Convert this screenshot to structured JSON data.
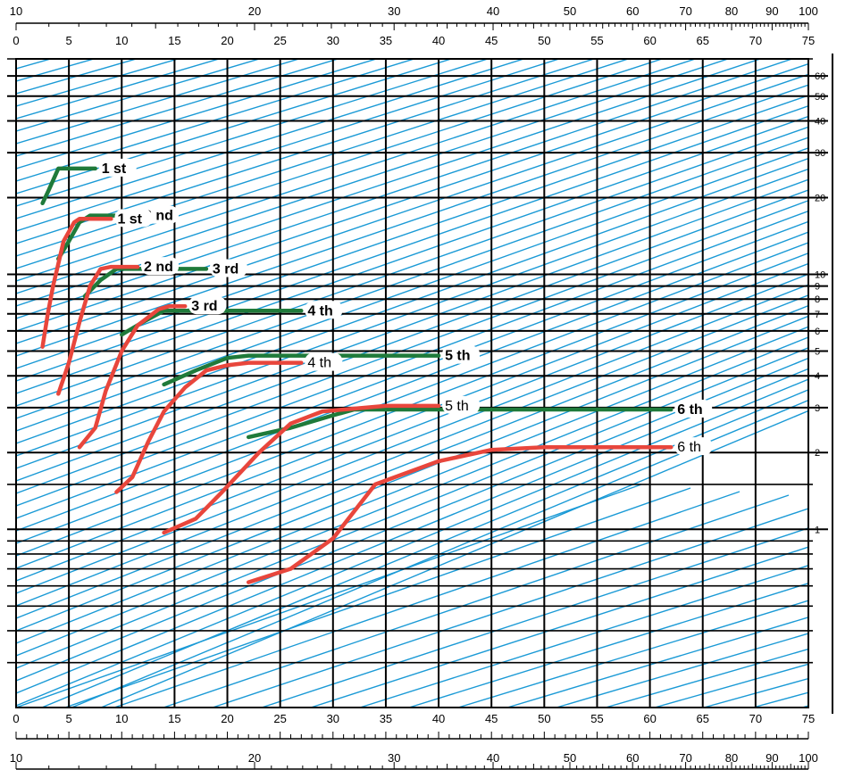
{
  "chart_data": {
    "type": "line",
    "title": "",
    "xlabel": "",
    "ylabel": "",
    "x_axis": {
      "range": [
        0,
        75
      ],
      "ticks": [
        0,
        5,
        10,
        15,
        20,
        25,
        30,
        35,
        40,
        45,
        50,
        55,
        60,
        65,
        70,
        75
      ],
      "top_log_ticks": [
        "10",
        "20",
        "30",
        "40",
        "50",
        "60",
        "70",
        "80",
        "90",
        "100"
      ]
    },
    "y_axis": {
      "scale": "log",
      "range": [
        0.2,
        70
      ],
      "tick_labels": [
        "60",
        "50",
        "40",
        "30",
        "20",
        "10",
        "9",
        "8",
        "7",
        "6",
        "5",
        "4",
        "3",
        "2",
        "1"
      ],
      "tick_values": [
        60,
        50,
        40,
        30,
        20,
        10,
        9,
        8,
        7,
        6,
        5,
        4,
        3,
        2,
        1
      ]
    },
    "grid": true,
    "colors": {
      "green_curves": "#1f7a3a",
      "red_curves": "#e8463c",
      "diagonal_lines": "#1a9ad6",
      "grid_lines": "#000000"
    },
    "series": [
      {
        "name": "1 st",
        "group": "green",
        "label_style": "bold",
        "points": [
          [
            2.5,
            19
          ],
          [
            3,
            21
          ],
          [
            4,
            26
          ],
          [
            7.5,
            26
          ]
        ]
      },
      {
        "name": "2 nd",
        "group": "green",
        "label_style": "bold",
        "points": [
          [
            4,
            11.5
          ],
          [
            5,
            13.5
          ],
          [
            6,
            16
          ],
          [
            7,
            17
          ],
          [
            11.5,
            17
          ]
        ]
      },
      {
        "name": "3 rd",
        "group": "green",
        "label_style": "bold",
        "points": [
          [
            6.5,
            8.2
          ],
          [
            8,
            9.5
          ],
          [
            9.5,
            10.5
          ],
          [
            18,
            10.5
          ]
        ]
      },
      {
        "name": "4 th",
        "group": "green",
        "label_style": "bold",
        "points": [
          [
            10,
            5.8
          ],
          [
            12,
            6.5
          ],
          [
            14,
            7.2
          ],
          [
            27,
            7.2
          ]
        ]
      },
      {
        "name": "5 th",
        "group": "green",
        "label_style": "bold",
        "points": [
          [
            14,
            3.7
          ],
          [
            17,
            4.2
          ],
          [
            20,
            4.7
          ],
          [
            22,
            4.8
          ],
          [
            40,
            4.8
          ]
        ]
      },
      {
        "name": "6 th",
        "group": "green",
        "label_style": "bold",
        "points": [
          [
            22,
            2.3
          ],
          [
            26,
            2.5
          ],
          [
            30,
            2.8
          ],
          [
            32,
            2.95
          ],
          [
            62,
            2.95
          ]
        ]
      },
      {
        "name": "1 st",
        "group": "red",
        "label_style": "bold",
        "points": [
          [
            2.5,
            5.2
          ],
          [
            3,
            7
          ],
          [
            3.5,
            9
          ],
          [
            4,
            11
          ],
          [
            4.5,
            13.5
          ],
          [
            5.5,
            16
          ],
          [
            6,
            16.5
          ],
          [
            9,
            16.5
          ]
        ]
      },
      {
        "name": "2 nd",
        "group": "red",
        "label_style": "bold",
        "points": [
          [
            4,
            3.4
          ],
          [
            5,
            4.5
          ],
          [
            6,
            6.5
          ],
          [
            7,
            9
          ],
          [
            8,
            10.5
          ],
          [
            9,
            10.7
          ],
          [
            11.5,
            10.7
          ]
        ]
      },
      {
        "name": "3 rd",
        "group": "red",
        "label_style": "bold",
        "points": [
          [
            6,
            2.1
          ],
          [
            7.5,
            2.5
          ],
          [
            8.5,
            3.5
          ],
          [
            10,
            5
          ],
          [
            11.5,
            6.3
          ],
          [
            13.5,
            7.3
          ],
          [
            14.5,
            7.5
          ],
          [
            16,
            7.5
          ]
        ]
      },
      {
        "name": "4 th",
        "group": "red",
        "label_style": "normal",
        "points": [
          [
            9.5,
            1.4
          ],
          [
            11,
            1.6
          ],
          [
            12.5,
            2.2
          ],
          [
            14,
            2.9
          ],
          [
            16,
            3.6
          ],
          [
            18,
            4.2
          ],
          [
            20,
            4.4
          ],
          [
            22,
            4.5
          ],
          [
            27,
            4.5
          ]
        ]
      },
      {
        "name": "5 th",
        "group": "red",
        "label_style": "normal",
        "points": [
          [
            14,
            0.97
          ],
          [
            17,
            1.1
          ],
          [
            19.5,
            1.4
          ],
          [
            23,
            2.0
          ],
          [
            26,
            2.6
          ],
          [
            29,
            2.9
          ],
          [
            35,
            3.05
          ],
          [
            40,
            3.05
          ]
        ]
      },
      {
        "name": "6 th",
        "group": "red",
        "label_style": "normal",
        "points": [
          [
            22,
            0.62
          ],
          [
            26,
            0.7
          ],
          [
            30,
            0.92
          ],
          [
            34,
            1.5
          ],
          [
            40,
            1.85
          ],
          [
            45,
            2.05
          ],
          [
            50,
            2.1
          ],
          [
            62,
            2.1
          ]
        ]
      }
    ]
  }
}
